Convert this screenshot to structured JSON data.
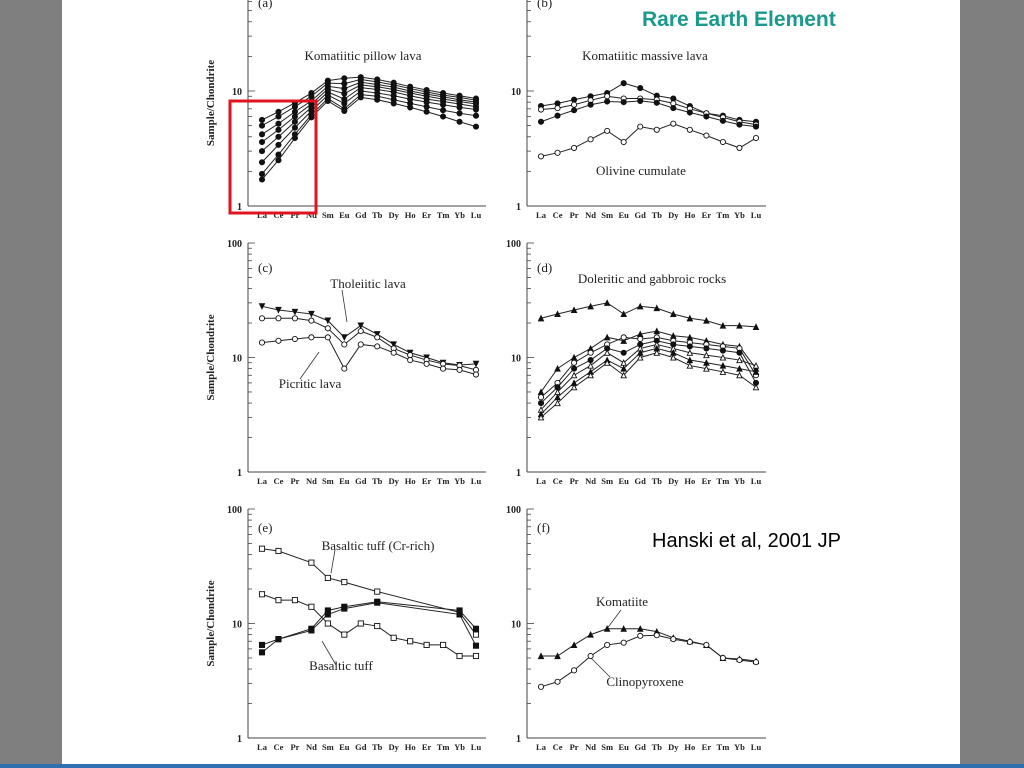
{
  "slide": {
    "title": "Rare Earth Element",
    "citation": "Hanski et al, 2001 JP",
    "title_color": "#1a9a8a",
    "highlight_color": "#e0141e",
    "highlight_label": "LREE depletion box"
  },
  "chart_data": [
    {
      "type": "line",
      "panel_label": "(a)",
      "title": "Komatiitic pillow lava",
      "ylabel": "Sample/Chondrite",
      "yscale": "log",
      "ylim": [
        1,
        100
      ],
      "ytick_labels": [
        "10",
        "1"
      ],
      "categories": [
        "La",
        "Ce",
        "Pr",
        "Nd",
        "Sm",
        "Eu",
        "Gd",
        "Tb",
        "Dy",
        "Ho",
        "Er",
        "Tm",
        "Yb",
        "Lu"
      ],
      "annotations": [
        "Komatiitic pillow lava"
      ],
      "series": [
        {
          "values": [
            5.6,
            6.6,
            7.9,
            9.6,
            12.3,
            12.9,
            13.2,
            12.6,
            11.8,
            10.9,
            10.2,
            9.6,
            9.1,
            8.6
          ]
        },
        {
          "values": [
            5.0,
            6.0,
            7.3,
            9.0,
            11.7,
            11.6,
            12.6,
            12.0,
            11.3,
            10.5,
            9.8,
            9.2,
            8.8,
            8.3
          ]
        },
        {
          "values": [
            4.2,
            5.2,
            6.6,
            8.2,
            11.0,
            10.5,
            11.9,
            11.4,
            10.8,
            10.0,
            9.4,
            8.9,
            8.4,
            8.0
          ]
        },
        {
          "values": [
            3.6,
            4.6,
            6.0,
            7.7,
            10.4,
            9.5,
            11.3,
            10.9,
            10.3,
            9.6,
            9.0,
            8.5,
            8.1,
            7.7
          ]
        },
        {
          "values": [
            3.0,
            4.0,
            5.4,
            7.2,
            9.8,
            8.5,
            10.7,
            10.3,
            9.8,
            9.1,
            8.5,
            8.1,
            7.7,
            7.3
          ]
        },
        {
          "values": [
            2.4,
            3.4,
            4.8,
            6.7,
            9.2,
            7.8,
            10.0,
            9.6,
            9.1,
            8.5,
            8.0,
            7.6,
            7.2,
            6.9
          ]
        },
        {
          "values": [
            1.9,
            2.8,
            4.2,
            6.2,
            8.6,
            7.0,
            9.3,
            9.0,
            8.4,
            7.8,
            7.3,
            6.8,
            6.4,
            6.1
          ]
        },
        {
          "values": [
            1.7,
            2.5,
            3.9,
            5.9,
            8.2,
            6.7,
            8.8,
            8.4,
            7.8,
            7.2,
            6.6,
            6.0,
            5.4,
            4.9
          ]
        }
      ]
    },
    {
      "type": "line",
      "panel_label": "(b)",
      "title": "Komatiitic massive lava",
      "yscale": "log",
      "ylim": [
        1,
        100
      ],
      "ytick_labels": [
        "10",
        "1"
      ],
      "categories": [
        "La",
        "Ce",
        "Pr",
        "Nd",
        "Sm",
        "Eu",
        "Gd",
        "Tb",
        "Dy",
        "Ho",
        "Er",
        "Tm",
        "Yb",
        "Lu"
      ],
      "annotations": [
        "Komatiitic massive lava",
        "Olivine cumulate"
      ],
      "series": [
        {
          "values": [
            7.4,
            7.8,
            8.4,
            9.0,
            9.6,
            11.7,
            10.6,
            9.1,
            8.6,
            7.4,
            6.4,
            6.1,
            5.6,
            5.4
          ]
        },
        {
          "values": [
            6.9,
            7.1,
            7.6,
            8.3,
            9.0,
            8.6,
            8.6,
            8.4,
            7.8,
            7.0,
            6.4,
            5.9,
            5.4,
            5.1
          ]
        },
        {
          "values": [
            5.4,
            6.1,
            6.8,
            7.6,
            8.1,
            8.0,
            8.2,
            7.9,
            7.1,
            6.5,
            6.0,
            5.5,
            5.1,
            4.9
          ]
        },
        {
          "values": [
            2.7,
            2.9,
            3.2,
            3.8,
            4.5,
            3.6,
            4.9,
            4.6,
            5.2,
            4.6,
            4.1,
            3.6,
            3.2,
            3.9
          ]
        }
      ]
    },
    {
      "type": "line",
      "panel_label": "(c)",
      "title": "Tholeiitic lava",
      "ylabel": "Sample/Chondrite",
      "yscale": "log",
      "ylim": [
        1,
        100
      ],
      "ytick_labels": [
        "100",
        "10",
        "1"
      ],
      "categories": [
        "La",
        "Ce",
        "Pr",
        "Nd",
        "Sm",
        "Eu",
        "Gd",
        "Tb",
        "Dy",
        "Ho",
        "Er",
        "Tm",
        "Yb",
        "Lu"
      ],
      "annotations": [
        "Tholeiitic lava",
        "Picritic lava"
      ],
      "series": [
        {
          "values": [
            28,
            26,
            25,
            24,
            21,
            15,
            19,
            16,
            13,
            11,
            10,
            9,
            8.6,
            8.8
          ]
        },
        {
          "values": [
            22,
            22,
            22,
            21,
            18,
            13,
            17,
            15,
            12,
            10.5,
            9.5,
            8.8,
            8.5,
            7.8
          ]
        },
        {
          "values": [
            13.5,
            14,
            14.5,
            15,
            15,
            8,
            13,
            12.5,
            11,
            9.5,
            8.8,
            8,
            7.8,
            7.1
          ]
        }
      ]
    },
    {
      "type": "line",
      "panel_label": "(d)",
      "title": "Doleritic and gabbroic rocks",
      "yscale": "log",
      "ylim": [
        1,
        100
      ],
      "ytick_labels": [
        "100",
        "10",
        "1"
      ],
      "categories": [
        "La",
        "Ce",
        "Pr",
        "Nd",
        "Sm",
        "Eu",
        "Gd",
        "Tb",
        "Dy",
        "Ho",
        "Er",
        "Tm",
        "Yb",
        "Lu"
      ],
      "annotations": [
        "Doleritic and gabbroic rocks"
      ],
      "series": [
        {
          "values": [
            22,
            24,
            26,
            28,
            30,
            24,
            28,
            27,
            24,
            22,
            21,
            19,
            19,
            18.5
          ]
        },
        {
          "values": [
            5,
            8,
            10,
            12,
            15,
            14,
            16,
            17,
            15.5,
            15,
            14,
            13,
            12.5,
            8
          ]
        },
        {
          "values": [
            4.5,
            6,
            9,
            11,
            13,
            15,
            14.5,
            15,
            14,
            13.5,
            13,
            12.5,
            12,
            7
          ]
        },
        {
          "values": [
            4,
            5.5,
            8,
            9.5,
            12,
            11,
            13,
            14,
            13,
            12.5,
            12,
            11.5,
            11,
            6
          ]
        },
        {
          "values": [
            3.5,
            5,
            7,
            8.5,
            11,
            9,
            12,
            13,
            12,
            11,
            10.5,
            10,
            9.5,
            8.5
          ]
        },
        {
          "values": [
            3.2,
            4.5,
            6,
            7.5,
            9.5,
            8,
            11,
            12,
            11,
            9.5,
            9,
            8.5,
            8,
            7.5
          ]
        },
        {
          "values": [
            3,
            4,
            5.5,
            7,
            9,
            7,
            10,
            11,
            10,
            8.5,
            8,
            7.5,
            7,
            5.5
          ]
        }
      ]
    },
    {
      "type": "line",
      "panel_label": "(e)",
      "title": "Basaltic tuff (Cr-rich)",
      "ylabel": "Sample/Chondrite",
      "yscale": "log",
      "ylim": [
        1,
        100
      ],
      "ytick_labels": [
        "100",
        "10",
        "1"
      ],
      "categories": [
        "La",
        "Ce",
        "Pr",
        "Nd",
        "Sm",
        "Eu",
        "Gd",
        "Tb",
        "Dy",
        "Ho",
        "Er",
        "Tm",
        "Yb",
        "Lu"
      ],
      "annotations": [
        "Basaltic tuff (Cr-rich)",
        "Basaltic tuff"
      ],
      "series": [
        {
          "values": [
            45,
            43,
            null,
            34,
            25,
            23,
            null,
            19,
            null,
            null,
            null,
            null,
            12.5,
            8
          ]
        },
        {
          "values": [
            18,
            16,
            16,
            14,
            10,
            8,
            10,
            9.5,
            7.5,
            7,
            6.5,
            6.5,
            5.2,
            5.2
          ]
        },
        {
          "values": [
            6.5,
            7.3,
            null,
            9,
            13,
            14,
            null,
            15.5,
            null,
            null,
            null,
            null,
            13,
            9
          ]
        },
        {
          "values": [
            5.6,
            7.3,
            null,
            8.7,
            12,
            13.5,
            null,
            15.2,
            null,
            null,
            null,
            null,
            12,
            6.4
          ]
        }
      ]
    },
    {
      "type": "line",
      "panel_label": "(f)",
      "title": "Komatiite",
      "yscale": "log",
      "ylim": [
        1,
        100
      ],
      "ytick_labels": [
        "100",
        "10",
        "1"
      ],
      "categories": [
        "La",
        "Ce",
        "Pr",
        "Nd",
        "Sm",
        "Eu",
        "Gd",
        "Tb",
        "Dy",
        "Ho",
        "Er",
        "Tm",
        "Yb",
        "Lu"
      ],
      "annotations": [
        "Komatiite",
        "Clinopyroxene"
      ],
      "series": [
        {
          "values": [
            5.2,
            5.2,
            6.5,
            8,
            9,
            9,
            9,
            8.5,
            7.5,
            7,
            6.5,
            5,
            4.9,
            4.7
          ]
        },
        {
          "values": [
            2.8,
            3.1,
            3.9,
            5.2,
            6.5,
            6.8,
            7.8,
            7.9,
            7.3,
            6.9,
            6.5,
            5,
            4.8,
            4.6
          ]
        }
      ]
    }
  ]
}
